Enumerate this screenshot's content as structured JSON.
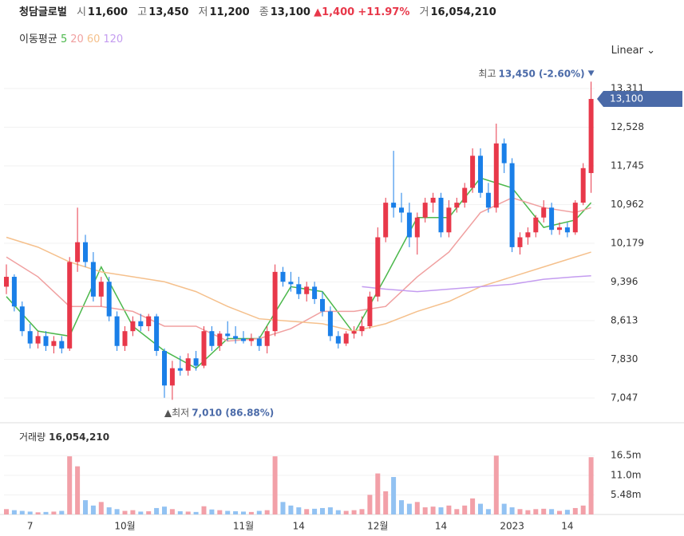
{
  "header": {
    "name": "청담글로벌",
    "fields": [
      {
        "label": "시",
        "value": "11,600"
      },
      {
        "label": "고",
        "value": "13,450"
      },
      {
        "label": "저",
        "value": "11,200"
      },
      {
        "label": "종",
        "value": "13,100"
      }
    ],
    "change": "▲1,400",
    "change_pct": "+11.97%",
    "volume_label": "거",
    "volume_value": "16,054,210",
    "ma_title": "이동평균",
    "scale": "Linear"
  },
  "chart_data": {
    "type": "candlestick",
    "categories": [
      null,
      null,
      null,
      "7",
      null,
      null,
      null,
      null,
      null,
      null,
      null,
      null,
      null,
      null,
      null,
      "10월",
      null,
      null,
      null,
      null,
      null,
      null,
      null,
      null,
      null,
      null,
      null,
      null,
      null,
      null,
      "11월",
      null,
      null,
      null,
      null,
      null,
      null,
      "14",
      null,
      null,
      null,
      null,
      null,
      null,
      null,
      null,
      null,
      "12월",
      null,
      null,
      null,
      null,
      null,
      null,
      null,
      "14",
      null,
      null,
      null,
      null,
      null,
      null,
      null,
      null,
      "2023",
      null,
      null,
      null,
      null,
      null,
      null,
      "14",
      null,
      null,
      null
    ],
    "open": [
      9300,
      9500,
      8900,
      8400,
      8150,
      8300,
      8100,
      8200,
      8050,
      9800,
      10200,
      9800,
      9100,
      9400,
      8700,
      8100,
      8400,
      8600,
      8500,
      8700,
      8000,
      7300,
      7650,
      7600,
      7850,
      7700,
      8400,
      8100,
      8350,
      8300,
      8250,
      8200,
      8250,
      8100,
      8400,
      9600,
      9400,
      9350,
      9150,
      9300,
      9050,
      8800,
      8300,
      8150,
      8350,
      8400,
      8500,
      9100,
      10300,
      11000,
      10900,
      10800,
      10300,
      10700,
      11000,
      11100,
      10400,
      10900,
      11000,
      11300,
      11950,
      11200,
      10900,
      12200,
      11800,
      10100,
      10300,
      10400,
      10700,
      10900,
      10450,
      10500,
      10400,
      11000,
      11600
    ],
    "high": [
      9750,
      9550,
      9000,
      8550,
      8400,
      8400,
      8300,
      8300,
      9900,
      10900,
      10350,
      10000,
      9500,
      9500,
      8800,
      8500,
      8700,
      8750,
      8750,
      8750,
      8050,
      7800,
      7900,
      7950,
      8000,
      8500,
      8500,
      8400,
      8600,
      8500,
      8400,
      8350,
      8300,
      8500,
      9750,
      9700,
      9600,
      9500,
      9400,
      9400,
      9200,
      8900,
      8400,
      8400,
      8500,
      8700,
      9200,
      10500,
      11100,
      12050,
      11200,
      11000,
      10800,
      11100,
      11200,
      11200,
      11050,
      11100,
      11400,
      12100,
      12100,
      11400,
      12600,
      12300,
      11900,
      10400,
      10500,
      10750,
      11050,
      11000,
      10600,
      10600,
      11050,
      11800,
      13450
    ],
    "low": [
      9150,
      8800,
      8300,
      8050,
      8050,
      8000,
      7950,
      7950,
      8000,
      9600,
      9700,
      9000,
      8900,
      8600,
      8000,
      8000,
      8300,
      8400,
      8400,
      7900,
      7050,
      7010,
      7500,
      7500,
      7600,
      7650,
      8000,
      8000,
      8200,
      8150,
      8150,
      8100,
      8000,
      7950,
      8300,
      9300,
      9200,
      9050,
      9000,
      8950,
      8700,
      8200,
      8050,
      8100,
      8250,
      8300,
      8450,
      9000,
      10200,
      10700,
      10600,
      10100,
      9950,
      10600,
      10800,
      10300,
      10300,
      10800,
      10900,
      11200,
      11100,
      10800,
      10800,
      11600,
      10000,
      9950,
      10150,
      10300,
      10600,
      10350,
      10350,
      10300,
      10350,
      10950,
      11200
    ],
    "close": [
      9500,
      8900,
      8400,
      8150,
      8300,
      8100,
      8200,
      8050,
      9800,
      10200,
      9800,
      9100,
      9400,
      8700,
      8100,
      8400,
      8600,
      8500,
      8700,
      8000,
      7300,
      7650,
      7600,
      7850,
      7700,
      8400,
      8100,
      8350,
      8300,
      8250,
      8200,
      8250,
      8100,
      8400,
      9600,
      9400,
      9350,
      9150,
      9300,
      9050,
      8800,
      8300,
      8150,
      8350,
      8400,
      8500,
      9100,
      10300,
      11000,
      10900,
      10800,
      10300,
      10700,
      11000,
      11100,
      10400,
      10900,
      11000,
      11300,
      11950,
      11200,
      10900,
      12200,
      11800,
      10100,
      10300,
      10400,
      10700,
      10900,
      10450,
      10500,
      10400,
      11000,
      11700,
      13100
    ],
    "up_color": "#e8384a",
    "down_color": "#1a7fe8",
    "ylim": [
      6627,
      13682
    ],
    "yticks": [
      {
        "value": 7047,
        "label": "7,047"
      },
      {
        "value": 7830,
        "label": "7,830"
      },
      {
        "value": 8613,
        "label": "8,613"
      },
      {
        "value": 9396,
        "label": "9,396"
      },
      {
        "value": 10179,
        "label": "10,179"
      },
      {
        "value": 10962,
        "label": "10,962"
      },
      {
        "value": 11745,
        "label": "11,745"
      },
      {
        "value": 12528,
        "label": "12,528"
      },
      {
        "value": 13311,
        "label": "13,311"
      }
    ],
    "grid": true,
    "series": [
      {
        "name": "5",
        "color": "#4cb84c",
        "x": [
          0,
          4,
          8,
          12,
          16,
          20,
          24,
          28,
          32,
          36,
          40,
          44,
          48,
          52,
          56,
          60,
          64,
          68,
          72,
          74
        ],
        "values": [
          9100,
          8400,
          8300,
          9700,
          8500,
          8000,
          7650,
          8250,
          8250,
          9300,
          9200,
          8350,
          9500,
          10700,
          10700,
          11500,
          11300,
          10500,
          10650,
          11000
        ]
      },
      {
        "name": "20",
        "color": "#f0a0a0",
        "x": [
          0,
          4,
          8,
          12,
          16,
          20,
          24,
          28,
          32,
          36,
          40,
          44,
          48,
          52,
          56,
          60,
          64,
          68,
          72,
          74
        ],
        "values": [
          9900,
          9500,
          8900,
          8900,
          8800,
          8500,
          8500,
          8200,
          8250,
          8450,
          8800,
          8800,
          8900,
          9500,
          10000,
          10800,
          11100,
          10900,
          10800,
          10900
        ]
      },
      {
        "name": "60",
        "color": "#f5c08c",
        "x": [
          0,
          4,
          8,
          12,
          16,
          20,
          24,
          28,
          32,
          36,
          40,
          44,
          48,
          52,
          56,
          60,
          64,
          68,
          72,
          74
        ],
        "values": [
          10300,
          10100,
          9800,
          9600,
          9500,
          9400,
          9200,
          8900,
          8650,
          8600,
          8550,
          8400,
          8550,
          8800,
          9000,
          9300,
          9500,
          9700,
          9900,
          10000
        ]
      },
      {
        "name": "120",
        "color": "#c49cf0",
        "x": [
          45,
          48,
          52,
          56,
          60,
          64,
          68,
          72,
          74
        ],
        "values": [
          9300,
          9250,
          9200,
          9250,
          9300,
          9350,
          9450,
          9500,
          9520
        ]
      }
    ],
    "price_tag": {
      "value": 13100,
      "label": "13,100"
    },
    "high_note": {
      "label": "최고",
      "value": 13450,
      "text": "13,450 (-2.60%)",
      "index": 74
    },
    "low_note": {
      "label": "▲최저",
      "value": 7010,
      "text": "7,010 (86.88%)",
      "index": 21
    },
    "volume": {
      "label": "거래량",
      "total": "16,054,210",
      "up_color": "#f2a0a8",
      "down_color": "#92c2f2",
      "ylim": [
        0,
        24600000
      ],
      "yticks": [
        {
          "value": 5480000,
          "label": "5.48m"
        },
        {
          "value": 11000000,
          "label": "11.0m"
        },
        {
          "value": 16500000,
          "label": "16.5m"
        }
      ],
      "values": [
        1500000,
        1200000,
        1000000,
        800000,
        600000,
        700000,
        800000,
        1000000,
        16300000,
        13500000,
        4000000,
        2500000,
        3500000,
        2000000,
        1500000,
        1000000,
        1200000,
        800000,
        900000,
        1800000,
        2200000,
        1500000,
        900000,
        800000,
        700000,
        2300000,
        1400000,
        1200000,
        1000000,
        900000,
        800000,
        700000,
        1000000,
        1200000,
        16300000,
        3500000,
        2500000,
        2000000,
        1500000,
        1600000,
        1800000,
        2000000,
        1200000,
        1000000,
        1200000,
        1500000,
        5500000,
        11500000,
        6500000,
        10500000,
        4000000,
        3000000,
        3500000,
        2000000,
        2200000,
        2000000,
        2500000,
        1500000,
        2500000,
        4500000,
        3000000,
        1500000,
        16500000,
        3000000,
        2000000,
        1500000,
        1200000,
        1500000,
        1600000,
        1500000,
        1000000,
        1300000,
        1800000,
        2500000,
        16054210
      ]
    }
  }
}
